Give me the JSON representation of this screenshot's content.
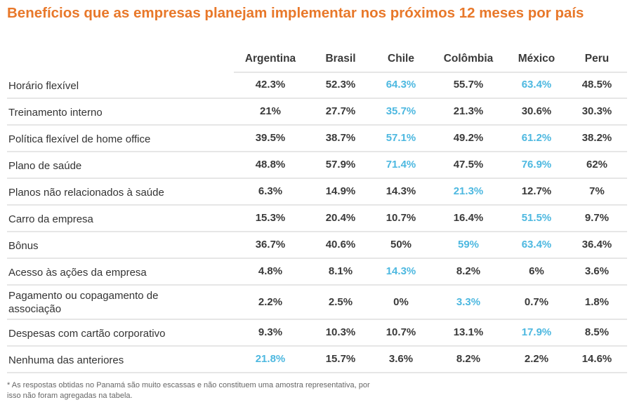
{
  "title": "Benefícios que as empresas planejam implementar nos próximos 12 meses por país",
  "colors": {
    "title": "#E8782A",
    "highlight": "#4DB8E0",
    "text": "#333333"
  },
  "chart_data": {
    "type": "table",
    "title": "Benefícios que as empresas planejam implementar nos próximos 12 meses por país",
    "columns": [
      "Argentina",
      "Brasil",
      "Chile",
      "Colômbia",
      "México",
      "Peru"
    ],
    "rows": [
      {
        "label": "Horário flexível",
        "values": [
          "42.3%",
          "52.3%",
          "64.3%",
          "55.7%",
          "63.4%",
          "48.5%"
        ],
        "highlighted": [
          "Chile",
          "México"
        ]
      },
      {
        "label": "Treinamento interno",
        "values": [
          "21%",
          "27.7%",
          "35.7%",
          "21.3%",
          "30.6%",
          "30.3%"
        ],
        "highlighted": [
          "Chile"
        ]
      },
      {
        "label": "Política flexível de home office",
        "values": [
          "39.5%",
          "38.7%",
          "57.1%",
          "49.2%",
          "61.2%",
          "38.2%"
        ],
        "highlighted": [
          "Chile",
          "México"
        ]
      },
      {
        "label": "Plano de saúde",
        "values": [
          "48.8%",
          "57.9%",
          "71.4%",
          "47.5%",
          "76.9%",
          "62%"
        ],
        "highlighted": [
          "Chile",
          "México"
        ]
      },
      {
        "label": "Planos não relacionados à saúde",
        "values": [
          "6.3%",
          "14.9%",
          "14.3%",
          "21.3%",
          "12.7%",
          "7%"
        ],
        "highlighted": [
          "Colômbia"
        ]
      },
      {
        "label": "Carro da empresa",
        "values": [
          "15.3%",
          "20.4%",
          "10.7%",
          "16.4%",
          "51.5%",
          "9.7%"
        ],
        "highlighted": [
          "México"
        ]
      },
      {
        "label": "Bônus",
        "values": [
          "36.7%",
          "40.6%",
          "50%",
          "59%",
          "63.4%",
          "36.4%"
        ],
        "highlighted": [
          "Colômbia",
          "México"
        ]
      },
      {
        "label": "Acesso às ações da empresa",
        "values": [
          "4.8%",
          "8.1%",
          "14.3%",
          "8.2%",
          "6%",
          "3.6%"
        ],
        "highlighted": [
          "Chile"
        ]
      },
      {
        "label": "Pagamento ou copagamento de associação",
        "values": [
          "2.2%",
          "2.5%",
          "0%",
          "3.3%",
          "0.7%",
          "1.8%"
        ],
        "highlighted": [
          "Colômbia"
        ]
      },
      {
        "label": "Despesas com cartão corporativo",
        "values": [
          "9.3%",
          "10.3%",
          "10.7%",
          "13.1%",
          "17.9%",
          "8.5%"
        ],
        "highlighted": [
          "México"
        ]
      },
      {
        "label": "Nenhuma das anteriores",
        "values": [
          "21.8%",
          "15.7%",
          "3.6%",
          "8.2%",
          "2.2%",
          "14.6%"
        ],
        "highlighted": [
          "Argentina"
        ]
      }
    ]
  },
  "footnote": "* As respostas obtidas no Panamá são muito escassas e não constituem uma amostra representativa, por isso não foram agregadas na tabela."
}
